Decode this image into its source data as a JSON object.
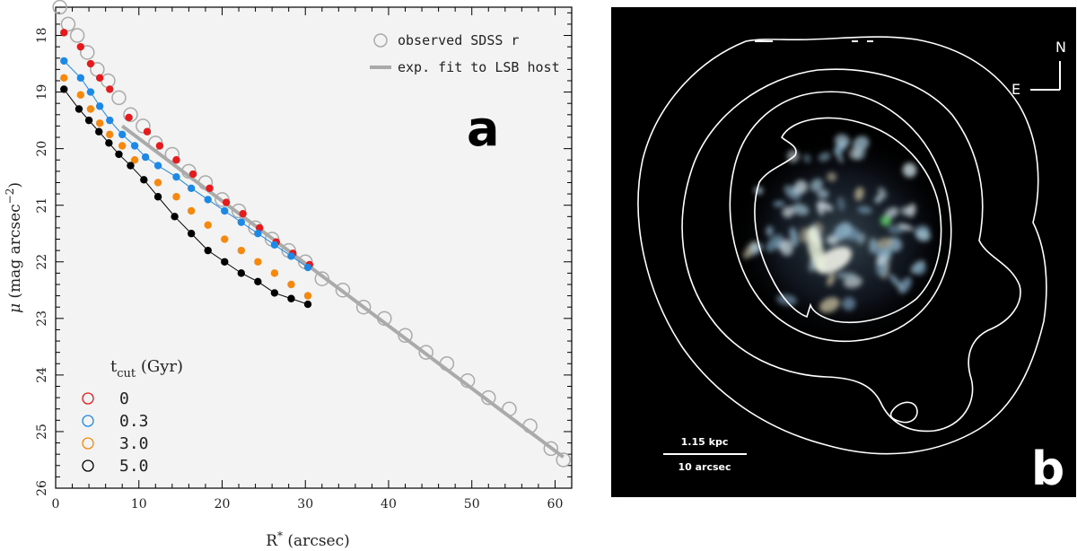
{
  "chart_data": [
    {
      "type": "scatter",
      "panel_label": "a",
      "xlabel": "R* (arcsec)",
      "ylabel": "μ (mag arcsec−2)",
      "xlim": [
        0,
        62
      ],
      "ylim": [
        26,
        17.5
      ],
      "x_ticks": [
        0,
        10,
        20,
        30,
        40,
        50,
        60
      ],
      "y_ticks": [
        18,
        19,
        20,
        21,
        22,
        23,
        24,
        25,
        26
      ],
      "grid": false,
      "legend_top": {
        "position": "top-right",
        "entries": [
          {
            "label": "observed SDSS r",
            "marker": "open-circle",
            "color": "#aaaaaa"
          },
          {
            "label": "exp. fit to LSB host",
            "marker": "line",
            "color": "#aaaaaa"
          }
        ]
      },
      "legend_bottom": {
        "position": "bottom-left",
        "title": "t_cut (Gyr)",
        "title_main": "t",
        "title_sub": "cut",
        "title_rest": " (Gyr)",
        "entries": [
          {
            "label": "0",
            "color": "#e41a1c"
          },
          {
            "label": "0.3",
            "color": "#1e88e5"
          },
          {
            "label": "3.0",
            "color": "#f5890f"
          },
          {
            "label": "5.0",
            "color": "#000000"
          }
        ]
      },
      "series": [
        {
          "name": "observed SDSS r",
          "style": "open-circle",
          "color": "#aaaaaa",
          "x": [
            0.5,
            1.5,
            2.6,
            3.8,
            5.0,
            6.3,
            7.6,
            9.0,
            10.5,
            12.0,
            14.0,
            16.0,
            18.0,
            20.0,
            22.0,
            24.0,
            26.0,
            28.0,
            30.0,
            32.0,
            34.5,
            37.0,
            39.5,
            42.0,
            44.5,
            47.0,
            49.5,
            52.0,
            54.5,
            57.0,
            59.5,
            61.0
          ],
          "y": [
            17.5,
            17.8,
            18.0,
            18.3,
            18.6,
            18.8,
            19.1,
            19.4,
            19.6,
            19.9,
            20.1,
            20.4,
            20.6,
            20.9,
            21.1,
            21.4,
            21.6,
            21.8,
            22.0,
            22.3,
            22.5,
            22.8,
            23.0,
            23.3,
            23.6,
            23.8,
            24.1,
            24.4,
            24.6,
            24.9,
            25.3,
            25.5
          ]
        },
        {
          "name": "exp. fit to LSB host",
          "style": "line",
          "color": "#aaaaaa",
          "x": [
            8.0,
            61.0
          ],
          "y": [
            19.6,
            25.45
          ]
        },
        {
          "name": "0",
          "style": "filled-circle",
          "color": "#e41a1c",
          "x": [
            1.0,
            3.0,
            4.2,
            5.3,
            6.5,
            8.8,
            11.0,
            12.5,
            14.5,
            16.5,
            18.5,
            20.5,
            22.5,
            24.5,
            26.5,
            28.5,
            30.5
          ],
          "y": [
            17.95,
            18.2,
            18.5,
            18.75,
            18.95,
            19.45,
            19.7,
            19.95,
            20.2,
            20.45,
            20.7,
            20.95,
            21.15,
            21.4,
            21.65,
            21.85,
            22.05
          ]
        },
        {
          "name": "0.3",
          "style": "filled-circle-line",
          "color": "#1e88e5",
          "x": [
            1.0,
            3.0,
            4.2,
            5.3,
            6.5,
            8.0,
            9.5,
            10.8,
            12.3,
            14.5,
            16.3,
            18.3,
            20.3,
            22.3,
            24.3,
            26.3,
            28.3,
            30.3
          ],
          "y": [
            18.45,
            18.75,
            19.0,
            19.25,
            19.5,
            19.75,
            19.95,
            20.15,
            20.3,
            20.5,
            20.7,
            20.9,
            21.1,
            21.3,
            21.5,
            21.7,
            21.9,
            22.1
          ]
        },
        {
          "name": "3.0",
          "style": "filled-circle",
          "color": "#f5890f",
          "x": [
            1.0,
            3.0,
            4.2,
            5.3,
            6.5,
            8.0,
            9.5,
            12.3,
            14.5,
            16.3,
            18.3,
            20.3,
            22.3,
            24.3,
            26.3,
            28.3,
            30.3
          ],
          "y": [
            18.75,
            19.05,
            19.3,
            19.55,
            19.75,
            19.95,
            20.2,
            20.6,
            20.85,
            21.1,
            21.35,
            21.6,
            21.8,
            22.0,
            22.2,
            22.4,
            22.6
          ]
        },
        {
          "name": "5.0",
          "style": "filled-circle-line",
          "color": "#000000",
          "x": [
            1.0,
            2.8,
            4.0,
            5.2,
            6.4,
            7.6,
            9.0,
            10.6,
            12.3,
            14.3,
            16.3,
            18.3,
            20.3,
            22.3,
            24.3,
            26.3,
            28.3,
            30.3
          ],
          "y": [
            18.95,
            19.3,
            19.5,
            19.7,
            19.9,
            20.1,
            20.3,
            20.55,
            20.85,
            21.2,
            21.5,
            21.8,
            22.0,
            22.2,
            22.35,
            22.55,
            22.65,
            22.75
          ]
        }
      ]
    }
  ],
  "panel_b": {
    "label": "b",
    "compass_n": "N",
    "compass_e": "E",
    "scale_top": "1.15 kpc",
    "scale_bottom": "10 arcsec"
  }
}
